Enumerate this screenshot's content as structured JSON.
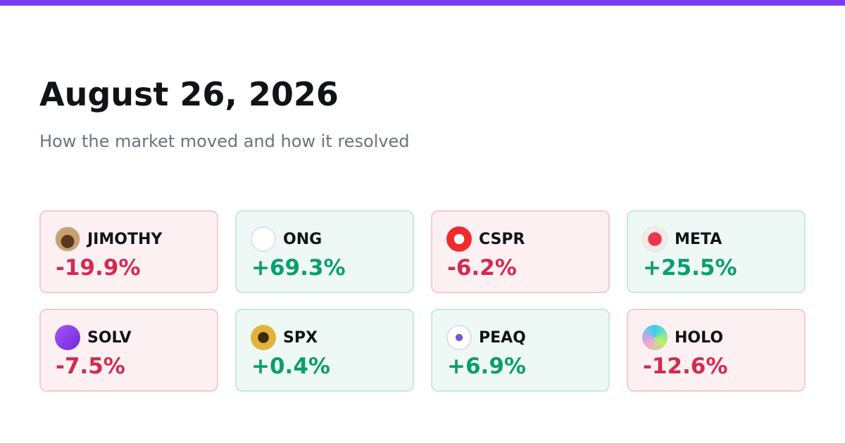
{
  "header": {
    "title": "August 26, 2026",
    "subtitle": "How the market moved and how it resolved"
  },
  "cards": [
    {
      "symbol": "JIMOTHY",
      "change": "-19.9%"
    },
    {
      "symbol": "ONG",
      "change": "+69.3%"
    },
    {
      "symbol": "CSPR",
      "change": "-6.2%"
    },
    {
      "symbol": "META",
      "change": "+25.5%"
    },
    {
      "symbol": "SOLV",
      "change": "-7.5%"
    },
    {
      "symbol": "SPX",
      "change": "+0.4%"
    },
    {
      "symbol": "PEAQ",
      "change": "+6.9%"
    },
    {
      "symbol": "HOLO",
      "change": "-12.6%"
    }
  ]
}
